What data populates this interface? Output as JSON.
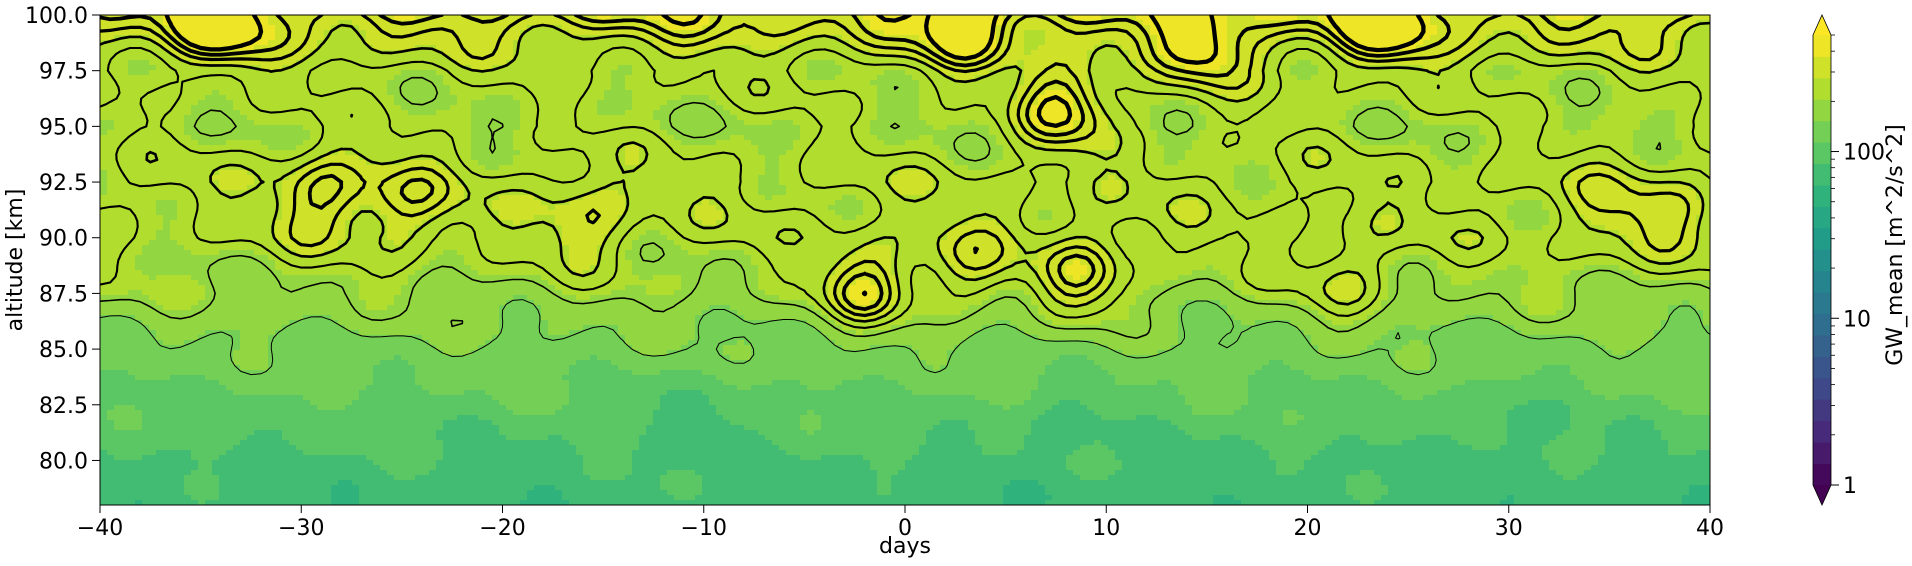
{
  "chart_data": {
    "type": "heatmap",
    "subtype": "filled-contour with overlaid line contours",
    "title": "",
    "xlabel": "days",
    "ylabel": "altitude [km]",
    "xlim": [
      -40,
      40
    ],
    "ylim": [
      78,
      100
    ],
    "x_ticks": [
      -40,
      -30,
      -20,
      -10,
      0,
      10,
      20,
      30,
      40
    ],
    "x_tick_labels": [
      "−40",
      "−30",
      "−20",
      "−10",
      "0",
      "10",
      "20",
      "30",
      "40"
    ],
    "y_ticks": [
      80.0,
      82.5,
      85.0,
      87.5,
      90.0,
      92.5,
      95.0,
      97.5,
      100.0
    ],
    "y_tick_labels": [
      "80.0",
      "82.5",
      "85.0",
      "87.5",
      "90.0",
      "92.5",
      "95.0",
      "97.5",
      "100.0"
    ],
    "grid": false,
    "colorbar": {
      "label": "GW_mean [m^2/s^2]",
      "scale": "log",
      "range": [
        1,
        500
      ],
      "extend": "both",
      "colormap": "viridis",
      "ticks": [
        1,
        10,
        100
      ],
      "tick_labels": [
        "1",
        "10",
        "100"
      ]
    },
    "field_profile": {
      "altitude_km": [
        78,
        80,
        82.5,
        85,
        87.5,
        90,
        92.5,
        95,
        97.5,
        100
      ],
      "typical_value": [
        70,
        80,
        105,
        140,
        190,
        230,
        240,
        210,
        230,
        350
      ]
    },
    "features": [
      {
        "day": -34,
        "altitude": 100,
        "value": 500
      },
      {
        "day": -29,
        "altitude": 92,
        "value": 360
      },
      {
        "day": -25,
        "altitude": 91.5,
        "value": 330
      },
      {
        "day": -16,
        "altitude": 91,
        "value": 320
      },
      {
        "day": -2,
        "altitude": 88,
        "value": 350
      },
      {
        "day": 3,
        "altitude": 89,
        "value": 300
      },
      {
        "day": 3,
        "altitude": 100,
        "value": 500
      },
      {
        "day": 8,
        "altitude": 96,
        "value": 400
      },
      {
        "day": 9,
        "altitude": 88.5,
        "value": 340
      },
      {
        "day": 15,
        "altitude": 99,
        "value": 460
      },
      {
        "day": 22,
        "altitude": 88.5,
        "value": 280
      },
      {
        "day": 24,
        "altitude": 100,
        "value": 500
      },
      {
        "day": 35,
        "altitude": 91,
        "value": 290
      },
      {
        "day": 38,
        "altitude": 91,
        "value": 290
      },
      {
        "day": -10,
        "altitude": 81.5,
        "value": 75
      },
      {
        "day": 8,
        "altitude": 81,
        "value": 72
      },
      {
        "day": 30,
        "altitude": 81,
        "value": 72
      }
    ],
    "line_contour_levels": [
      150,
      190,
      230,
      270,
      310,
      350,
      400
    ]
  }
}
